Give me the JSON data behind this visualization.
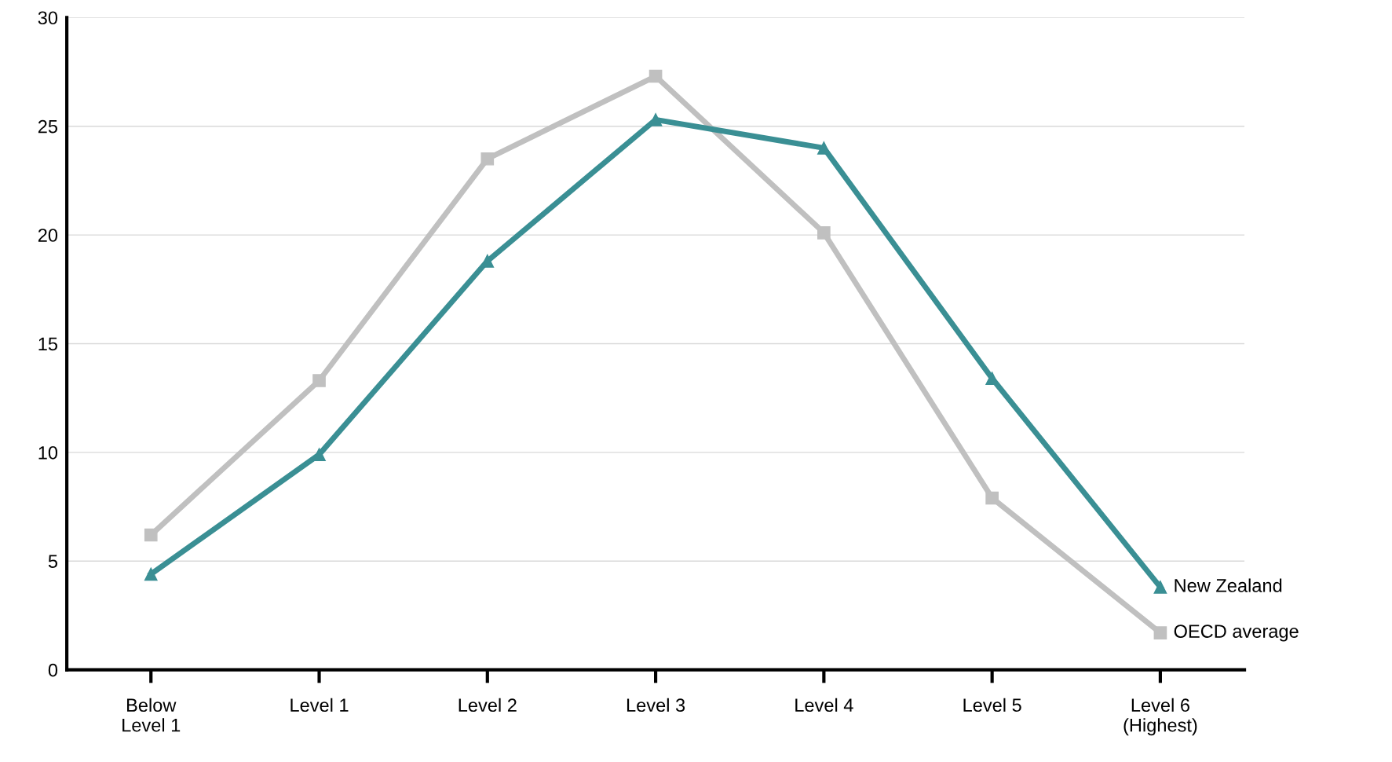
{
  "chart_data": {
    "type": "line",
    "categories": [
      "Below\nLevel 1",
      "Level 1",
      "Level 2",
      "Level 3",
      "Level 4",
      "Level 5",
      "Level 6\n(Highest)"
    ],
    "series": [
      {
        "name": "New Zealand",
        "color": "#3a8f94",
        "marker": "triangle",
        "values": [
          4.4,
          9.9,
          18.8,
          25.3,
          24.0,
          13.4,
          3.8
        ]
      },
      {
        "name": "OECD average",
        "color": "#c0c0c0",
        "marker": "square",
        "values": [
          6.2,
          13.3,
          23.5,
          27.3,
          20.1,
          7.9,
          1.7
        ]
      }
    ],
    "ylim": [
      0,
      30
    ],
    "yticks": [
      0,
      5,
      10,
      15,
      20,
      25,
      30
    ],
    "grid": "y",
    "legend": false,
    "line_style": "solid"
  }
}
